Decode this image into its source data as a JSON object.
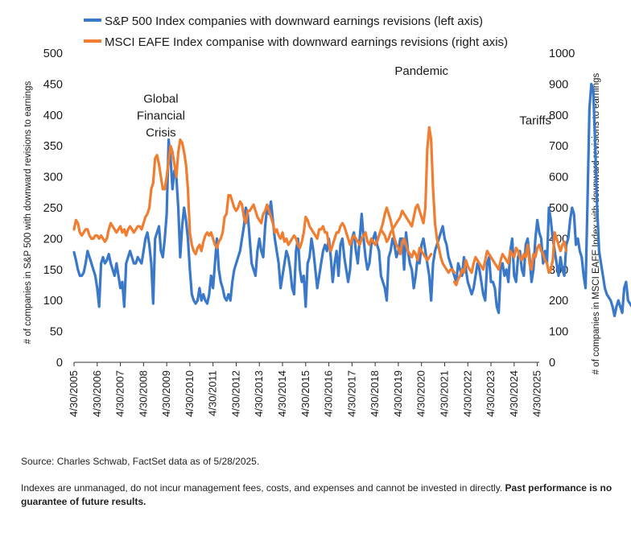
{
  "chart_data": {
    "type": "line",
    "series": [
      {
        "name": "S&P 500 Index companies with downward earnings revisions (left axis)",
        "axis": "left",
        "color": "#3a78c9",
        "start": "2005-04",
        "step": "month",
        "values": [
          178,
          165,
          150,
          140,
          140,
          145,
          160,
          180,
          170,
          160,
          150,
          140,
          120,
          90,
          160,
          170,
          160,
          165,
          175,
          160,
          150,
          140,
          160,
          140,
          120,
          130,
          90,
          160,
          170,
          180,
          170,
          160,
          160,
          170,
          165,
          160,
          180,
          200,
          210,
          190,
          160,
          95,
          200,
          210,
          220,
          180,
          170,
          200,
          240,
          360,
          330,
          280,
          310,
          300,
          250,
          170,
          220,
          250,
          230,
          200,
          150,
          110,
          100,
          95,
          100,
          120,
          100,
          110,
          100,
          95,
          110,
          140,
          120,
          160,
          200,
          150,
          130,
          120,
          105,
          100,
          110,
          100,
          130,
          150,
          160,
          170,
          180,
          200,
          220,
          250,
          240,
          200,
          160,
          150,
          140,
          180,
          200,
          180,
          170,
          220,
          250,
          240,
          260,
          230,
          200,
          180,
          160,
          120,
          140,
          160,
          180,
          170,
          150,
          120,
          110,
          180,
          200,
          150,
          130,
          140,
          90,
          160,
          170,
          200,
          180,
          150,
          120,
          140,
          160,
          180,
          190,
          180,
          200,
          170,
          130,
          160,
          180,
          140,
          190,
          200,
          170,
          150,
          130,
          150,
          200,
          210,
          180,
          160,
          200,
          240,
          200,
          170,
          150,
          160,
          190,
          200,
          210,
          190,
          180,
          140,
          130,
          120,
          100,
          170,
          180,
          200,
          190,
          170,
          180,
          200,
          200,
          150,
          210,
          180,
          160,
          150,
          120,
          140,
          170,
          160,
          190,
          200,
          180,
          160,
          140,
          100,
          160,
          180,
          190,
          200,
          210,
          220,
          200,
          190,
          170,
          160,
          150,
          140,
          130,
          160,
          150,
          140,
          170,
          150,
          130,
          120,
          110,
          120,
          140,
          160,
          150,
          130,
          110,
          100,
          160,
          170,
          130,
          130,
          120,
          90,
          80,
          150,
          160,
          140,
          150,
          130,
          180,
          200,
          140,
          130,
          170,
          180,
          150,
          140,
          190,
          200,
          170,
          130,
          150,
          200,
          230,
          210,
          200,
          160,
          180,
          160,
          250,
          230,
          200,
          180,
          160,
          140,
          170,
          150,
          140,
          190,
          200,
          230,
          250,
          240,
          190,
          200,
          180,
          170,
          140,
          120,
          260,
          410,
          450,
          440,
          350,
          250,
          180,
          160,
          140,
          120,
          110,
          105,
          100,
          90,
          75,
          90,
          100,
          90,
          80,
          120,
          130,
          100,
          95,
          90,
          85,
          80,
          80,
          150,
          160,
          170,
          130,
          120,
          110,
          115,
          150,
          160,
          140,
          80,
          120,
          130,
          150,
          180,
          215,
          200,
          210,
          190,
          170,
          180,
          230,
          280,
          200,
          220,
          220,
          280,
          250,
          200,
          180,
          160,
          190,
          220,
          180,
          200,
          210,
          150,
          160,
          200,
          220,
          200,
          180,
          160,
          170,
          210,
          180,
          200,
          220,
          210,
          170,
          150,
          130,
          140,
          160,
          190,
          200,
          210,
          220,
          200,
          150,
          100,
          140,
          160,
          180,
          200,
          210,
          200,
          220,
          210,
          190,
          180,
          160,
          170,
          200,
          220,
          160,
          180,
          180,
          90,
          260,
          350,
          330,
          280,
          200
        ]
      },
      {
        "name": "MSCI EAFE Index companise with downward earnings revisions (right axis)",
        "axis": "right",
        "color": "#f07d30",
        "start": "2005-04",
        "step": "month",
        "segments": [
          {
            "start_index": 0,
            "values": [
              430,
              460,
              450,
              420,
              410,
              420,
              430,
              430,
              410,
              400,
              400,
              410,
              410,
              400,
              410,
              400,
              390,
              400,
              430,
              450,
              440,
              430,
              420,
              430,
              440,
              420,
              430,
              410,
              430,
              440,
              430,
              420,
              430,
              440,
              440,
              430,
              450,
              470,
              480,
              500,
              560,
              580,
              660,
              670,
              640,
              600,
              560,
              560,
              600,
              650,
              700,
              680,
              640,
              600,
              680,
              720,
              710,
              680,
              640,
              560,
              420,
              380,
              360,
              350,
              370,
              380,
              360,
              390,
              410,
              420,
              410,
              420,
              400,
              380,
              370,
              390,
              400,
              420,
              470,
              480,
              540,
              540,
              520,
              500,
              490,
              500,
              520,
              510,
              470,
              450,
              490,
              490,
              500,
              510,
              490,
              470,
              460,
              450,
              480,
              490,
              510,
              490,
              470,
              450,
              420,
              430,
              410,
              400,
              420,
              390,
              400,
              380,
              390,
              400,
              410,
              400,
              380,
              370,
              390,
              420,
              470,
              460,
              440,
              430,
              420,
              410,
              400,
              430,
              430,
              440,
              420,
              420,
              380,
              360,
              380,
              400,
              420,
              420,
              440,
              450,
              440,
              420,
              400,
              380,
              400,
              410,
              400,
              390,
              380,
              400,
              410,
              420,
              390,
              380,
              400,
              390,
              380,
              390,
              410,
              430,
              450,
              480,
              500,
              480,
              460,
              430,
              400,
              380,
              370,
              350,
              390,
              400,
              380,
              360,
              350,
              340,
              360,
              350,
              330,
              370,
              360,
              350,
              340,
              330,
              340,
              350
            ]
          },
          {
            "start_index": 159,
            "values": [
              430,
              420,
              410,
              390,
              400,
              420,
              430,
              440,
              450,
              460,
              470,
              490,
              480,
              470,
              460,
              450,
              440,
              470,
              500,
              510,
              490,
              470,
              450,
              500,
              690,
              760,
              720,
              560,
              450,
              400,
              370,
              340,
              320,
              310,
              300,
              290,
              300,
              300,
              290
            ]
          },
          {
            "start_index": 197,
            "values": [
              260,
              250,
              270,
              280,
              300,
              290,
              330,
              310,
              300,
              290,
              320,
              340,
              330,
              320,
              310,
              300,
              330,
              360,
              350,
              340,
              330,
              320,
              310,
              300,
              330,
              350,
              340,
              330,
              320,
              360,
              350,
              340,
              370,
              360,
              340,
              330,
              350,
              340,
              380,
              320,
              300,
              350,
              340,
              370,
              380,
              360,
              350,
              330,
              320,
              290,
              300,
              330,
              420,
              400,
              380,
              360,
              380,
              390,
              360
            ]
          }
        ]
      }
    ],
    "y_left": {
      "label": "# of companies in S&P 500 with downward revisions to earnings",
      "min": 0,
      "max": 500,
      "ticks": [
        0,
        50,
        100,
        150,
        200,
        250,
        300,
        350,
        400,
        450,
        500
      ]
    },
    "y_right": {
      "label": "# of companies in MSCI EAFE Index with downward revisions to earnings",
      "min": 0,
      "max": 1000,
      "ticks": [
        0,
        100,
        200,
        300,
        400,
        500,
        600,
        700,
        800,
        900,
        1000
      ]
    },
    "x_ticks": [
      "4/30/2005",
      "4/30/2006",
      "4/30/2007",
      "4/30/2008",
      "4/30/2009",
      "4/30/2010",
      "4/30/2011",
      "4/30/2012",
      "4/30/2013",
      "4/30/2014",
      "4/30/2015",
      "4/30/2016",
      "4/30/2017",
      "4/30/2018",
      "4/30/2019",
      "4/30/2020",
      "4/30/2021",
      "4/30/2022",
      "4/30/2023",
      "4/30/2024",
      "4/30/2025"
    ],
    "x_range": [
      "2005-04",
      "2025-05"
    ],
    "annotations": [
      {
        "lines": [
          "Global",
          "Financial",
          "Crisis"
        ],
        "date": "2009-01",
        "value": 420
      },
      {
        "lines": [
          "Pandemic"
        ],
        "date": "2020-04",
        "value": 465
      },
      {
        "lines": [
          "Tariffs"
        ],
        "date": "2025-03",
        "value": 385
      }
    ],
    "legend_position": "top",
    "grid": false
  },
  "source": "Source: Charles Schwab, FactSet data as of 5/28/2025.",
  "disclaimer": {
    "normal": "Indexes are unmanaged, do not incur management fees, costs, and expenses and cannot be invested in directly. ",
    "bold": "Past performance is no guarantee of future results."
  }
}
